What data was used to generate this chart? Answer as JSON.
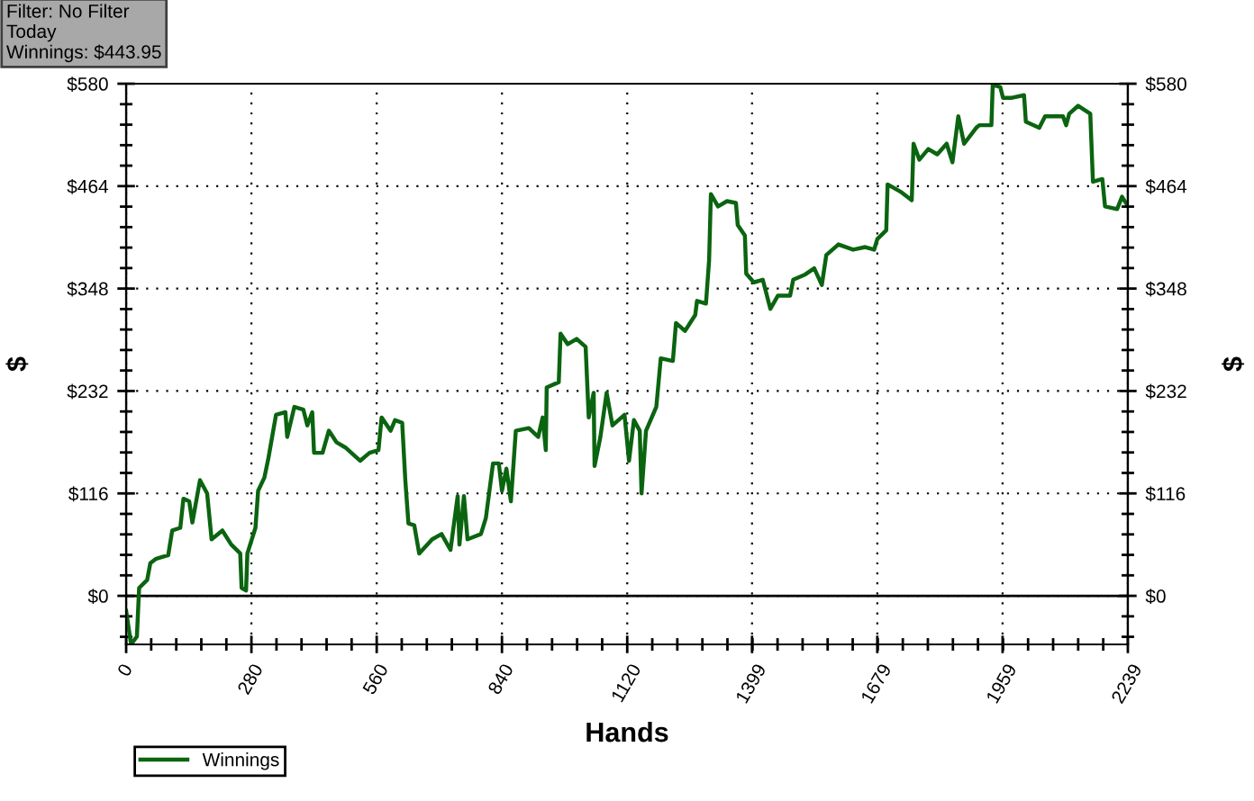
{
  "chart_data": {
    "type": "line",
    "xlabel": "Hands",
    "ylabel": "$",
    "y2label": "$",
    "annotations": [
      "Filter: No Filter\nToday\nWinnings: $443.95"
    ],
    "xlim": [
      0,
      2239
    ],
    "xticks": [
      0,
      280,
      560,
      840,
      1120,
      1399,
      1679,
      1959,
      2239
    ],
    "ylim": [
      -55,
      580
    ],
    "yticks": [
      {
        "value": 0,
        "label": "$0"
      },
      {
        "value": 116,
        "label": "$116"
      },
      {
        "value": 232,
        "label": "$232"
      },
      {
        "value": 348,
        "label": "$348"
      },
      {
        "value": 464,
        "label": "$464"
      },
      {
        "value": 580,
        "label": "$580"
      }
    ],
    "y2lim": [
      -55,
      580
    ],
    "y2ticks": [
      {
        "value": 0,
        "label": "$0"
      },
      {
        "value": 116,
        "label": "$116"
      },
      {
        "value": 232,
        "label": "$232"
      },
      {
        "value": 348,
        "label": "$348"
      },
      {
        "value": 464,
        "label": "$464"
      },
      {
        "value": 580,
        "label": "$580"
      }
    ],
    "grid": true,
    "legend": "bottom left",
    "line_style": "solid",
    "marker": "none",
    "ref_lines": [
      {
        "axis": "y",
        "value": 0,
        "color": "#000000",
        "line_style": "solid"
      }
    ],
    "series": [
      {
        "name": "Winnings",
        "color": "#0b6410",
        "x": [
          0,
          11,
          24,
          29,
          47,
          54,
          67,
          94,
          103,
          121,
          128,
          141,
          148,
          165,
          181,
          191,
          215,
          235,
          255,
          258,
          268,
          271,
          289,
          295,
          309,
          318,
          335,
          356,
          360,
          376,
          396,
          405,
          416,
          420,
          439,
          453,
          470,
          490,
          523,
          544,
          564,
          571,
          591,
          601,
          617,
          624,
          631,
          644,
          655,
          684,
          705,
          725,
          741,
          745,
          755,
          763,
          793,
          804,
          820,
          833,
          840,
          850,
          860,
          871,
          900,
          921,
          931,
          938,
          940,
          967,
          971,
          987,
          1007,
          1027,
          1034,
          1045,
          1047,
          1060,
          1074,
          1087,
          1114,
          1124,
          1135,
          1148,
          1152,
          1162,
          1185,
          1195,
          1222,
          1229,
          1249,
          1272,
          1276,
          1296,
          1303,
          1307,
          1323,
          1343,
          1363,
          1367,
          1383,
          1386,
          1403,
          1423,
          1440,
          1457,
          1484,
          1491,
          1518,
          1538,
          1555,
          1565,
          1592,
          1625,
          1652,
          1672,
          1679,
          1699,
          1702,
          1733,
          1756,
          1760,
          1773,
          1793,
          1813,
          1834,
          1847,
          1860,
          1873,
          1900,
          1907,
          1934,
          1937,
          1954,
          1960,
          1980,
          2007,
          2011,
          2041,
          2054,
          2094,
          2101,
          2108,
          2128,
          2155,
          2161,
          2182,
          2188,
          2215,
          2226,
          2236
        ],
        "values": [
          -17,
          -55,
          -46,
          9,
          18,
          37,
          42,
          46,
          74,
          77,
          110,
          107,
          83,
          131,
          116,
          64,
          74,
          58,
          48,
          9,
          6,
          48,
          77,
          119,
          134,
          156,
          205,
          208,
          180,
          214,
          211,
          193,
          208,
          162,
          162,
          187,
          174,
          168,
          153,
          162,
          165,
          202,
          187,
          199,
          196,
          131,
          82,
          80,
          48,
          64,
          70,
          52,
          113,
          58,
          113,
          64,
          70,
          88,
          150,
          150,
          119,
          144,
          107,
          187,
          190,
          180,
          202,
          165,
          236,
          242,
          297,
          285,
          291,
          282,
          202,
          230,
          147,
          180,
          230,
          193,
          205,
          153,
          199,
          187,
          116,
          187,
          214,
          269,
          266,
          309,
          300,
          318,
          334,
          331,
          380,
          455,
          441,
          447,
          445,
          420,
          408,
          365,
          355,
          358,
          325,
          340,
          340,
          358,
          364,
          371,
          352,
          386,
          398,
          392,
          395,
          392,
          404,
          414,
          466,
          457,
          448,
          512,
          494,
          506,
          500,
          512,
          491,
          543,
          512,
          530,
          533,
          533,
          579,
          576,
          564,
          564,
          567,
          537,
          530,
          543,
          543,
          533,
          546,
          555,
          546,
          469,
          472,
          441,
          438,
          452,
          444
        ]
      }
    ]
  }
}
